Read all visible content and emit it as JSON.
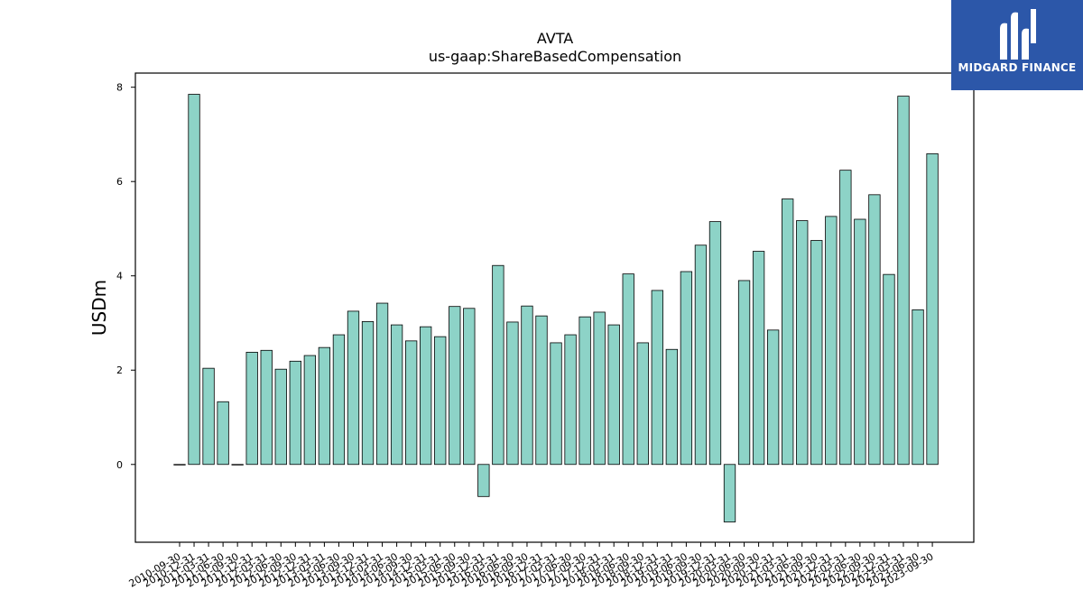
{
  "chart_data": {
    "type": "bar",
    "title": "AVTA",
    "subtitle": "us-gaap:ShareBasedCompensation",
    "xlabel": "",
    "ylabel": "USDm",
    "ylim": [
      -1.65,
      8.3
    ],
    "yticks": [
      0,
      2,
      4,
      6,
      8
    ],
    "grid": false,
    "bar_color": "#8dd3c7",
    "categories": [
      "2010-09-30",
      "2010-12-31",
      "2011-03-31",
      "2011-06-30",
      "2011-09-30",
      "2011-12-31",
      "2012-03-31",
      "2012-06-30",
      "2012-09-30",
      "2012-12-31",
      "2013-03-31",
      "2013-06-30",
      "2013-09-30",
      "2013-12-31",
      "2014-03-31",
      "2014-06-30",
      "2014-09-30",
      "2014-12-31",
      "2015-03-31",
      "2015-06-30",
      "2015-09-30",
      "2015-12-31",
      "2016-03-31",
      "2016-06-30",
      "2016-09-30",
      "2016-12-31",
      "2017-03-31",
      "2017-06-30",
      "2017-09-30",
      "2017-12-31",
      "2018-03-31",
      "2018-06-30",
      "2018-09-30",
      "2018-12-31",
      "2019-03-31",
      "2019-06-30",
      "2019-09-30",
      "2019-12-31",
      "2020-03-31",
      "2020-06-30",
      "2020-09-30",
      "2020-12-31",
      "2021-03-31",
      "2021-06-30",
      "2021-09-30",
      "2021-12-31",
      "2022-03-31",
      "2022-06-30",
      "2022-09-30",
      "2022-12-31",
      "2023-03-31",
      "2023-06-30",
      "2023-09-30"
    ],
    "values": [
      0,
      7.85,
      2.04,
      1.33,
      0,
      2.38,
      2.42,
      2.02,
      2.19,
      2.31,
      2.48,
      2.75,
      3.25,
      3.03,
      3.42,
      2.96,
      2.62,
      2.92,
      2.71,
      3.35,
      3.31,
      -0.68,
      4.22,
      3.02,
      3.36,
      3.15,
      2.58,
      2.75,
      3.13,
      3.23,
      2.96,
      4.04,
      2.58,
      3.69,
      2.44,
      4.09,
      4.65,
      5.15,
      -1.22,
      3.9,
      4.52,
      2.85,
      5.63,
      5.17,
      4.75,
      5.26,
      6.24,
      5.2,
      5.72,
      4.03,
      7.81,
      3.28,
      6.59
    ]
  },
  "branding": {
    "name": "MIDGARD FINANCE",
    "icon": "midgard-logo-icon",
    "color": "#2c57a9"
  }
}
